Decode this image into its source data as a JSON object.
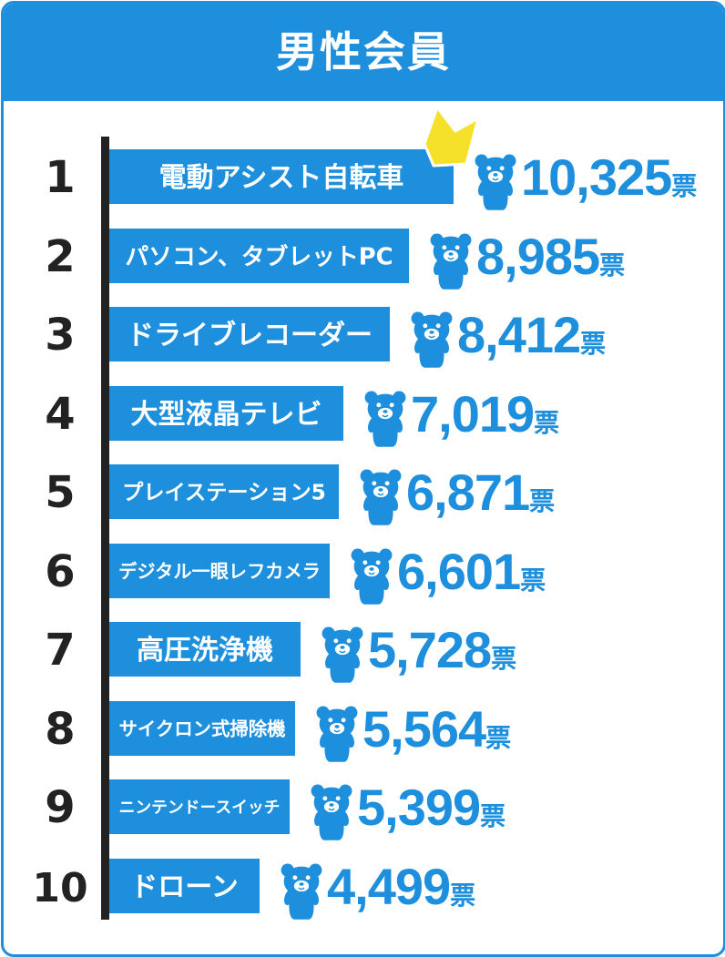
{
  "header": {
    "title": "男性会員"
  },
  "chart_data": {
    "type": "bar",
    "orientation": "horizontal",
    "title": "男性会員",
    "unit": "票",
    "ranks": [
      "1",
      "2",
      "3",
      "4",
      "5",
      "6",
      "7",
      "8",
      "9",
      "10"
    ],
    "categories": [
      "電動アシスト自転車",
      "パソコン、タブレットPC",
      "ドライブレコーダー",
      "大型液晶テレビ",
      "プレイステーション5",
      "デジタル一眼レフカメラ",
      "高圧洗浄機",
      "サイクロン式掃除機",
      "ニンテンドースイッチ",
      "ドローン"
    ],
    "values": [
      10325,
      8985,
      8412,
      7019,
      6871,
      6601,
      5728,
      5564,
      5399,
      4499
    ],
    "value_labels": [
      "10,325",
      "8,985",
      "8,412",
      "7,019",
      "6,871",
      "6,601",
      "5,728",
      "5,564",
      "5,399",
      "4,499"
    ],
    "bar_color": "#1d8fdd",
    "crown_color": "#f5e02a",
    "mascot_icon": "bear-mascot-icon",
    "crown_icon": "crown-icon"
  }
}
